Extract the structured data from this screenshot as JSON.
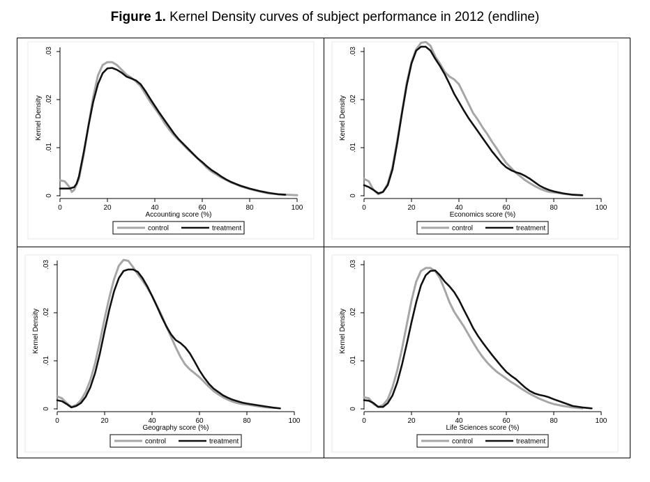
{
  "figure": {
    "title_bold": "Figure 1.",
    "title_rest": " Kernel Density curves of subject performance in 2012 (endline)"
  },
  "colors": {
    "control": "#a6a6a6",
    "treatment": "#111111",
    "frame": "#e8e8e8"
  },
  "chart_data": [
    {
      "type": "line",
      "xlabel": "Accounting score (%)",
      "ylabel": "Kernel Density",
      "xlim": [
        0,
        100
      ],
      "ylim": [
        0,
        0.03
      ],
      "xticks": [
        0,
        20,
        40,
        60,
        80,
        100
      ],
      "xtick_labels": [
        "0",
        "20",
        "40",
        "60",
        "80",
        "100"
      ],
      "yticks": [
        0,
        0.01,
        0.02,
        0.03
      ],
      "ytick_labels": [
        "0",
        ".01",
        ".02",
        ".03"
      ],
      "legend": {
        "position": "bottom",
        "entries": [
          "control",
          "treatment"
        ]
      },
      "series": [
        {
          "name": "control",
          "x": [
            0,
            2,
            4,
            5,
            6,
            8,
            10,
            12,
            14,
            16,
            18,
            20,
            22,
            24,
            26,
            28,
            30,
            32,
            34,
            36,
            38,
            40,
            42,
            44,
            46,
            48,
            50,
            52,
            54,
            56,
            58,
            60,
            62,
            64,
            66,
            68,
            70,
            72,
            74,
            76,
            78,
            80,
            84,
            88,
            92,
            96,
            100
          ],
          "y": [
            0.0032,
            0.003,
            0.0018,
            0.0008,
            0.0012,
            0.0035,
            0.0085,
            0.0145,
            0.0205,
            0.025,
            0.0272,
            0.0278,
            0.0278,
            0.0272,
            0.0262,
            0.0252,
            0.0246,
            0.0238,
            0.0228,
            0.0212,
            0.0196,
            0.0182,
            0.0168,
            0.0152,
            0.0138,
            0.0126,
            0.0116,
            0.0106,
            0.0096,
            0.0087,
            0.0078,
            0.0068,
            0.0058,
            0.005,
            0.0044,
            0.0038,
            0.0033,
            0.0028,
            0.0024,
            0.002,
            0.0017,
            0.0014,
            0.0009,
            0.0005,
            0.0003,
            0.0002,
            0.0001
          ]
        },
        {
          "name": "treatment",
          "x": [
            0,
            2,
            4,
            6,
            7,
            8,
            10,
            12,
            14,
            16,
            18,
            20,
            22,
            24,
            26,
            28,
            30,
            32,
            34,
            36,
            38,
            40,
            42,
            44,
            46,
            48,
            50,
            52,
            54,
            56,
            58,
            60,
            62,
            64,
            66,
            68,
            70,
            72,
            74,
            76,
            78,
            80,
            84,
            88,
            92,
            95
          ],
          "y": [
            0.0015,
            0.0015,
            0.0015,
            0.0018,
            0.0025,
            0.004,
            0.009,
            0.0145,
            0.0195,
            0.0232,
            0.0255,
            0.0265,
            0.0266,
            0.0262,
            0.0256,
            0.0248,
            0.0244,
            0.024,
            0.0232,
            0.0218,
            0.0202,
            0.0187,
            0.0172,
            0.0158,
            0.0144,
            0.013,
            0.0118,
            0.0108,
            0.0098,
            0.0088,
            0.0078,
            0.007,
            0.0061,
            0.0053,
            0.0047,
            0.004,
            0.0034,
            0.0029,
            0.0025,
            0.0021,
            0.0018,
            0.0015,
            0.001,
            0.0006,
            0.0003,
            0.0002
          ]
        }
      ]
    },
    {
      "type": "line",
      "xlabel": "Economics score (%)",
      "ylabel": "Kernel Density",
      "xlim": [
        0,
        100
      ],
      "ylim": [
        0,
        0.03
      ],
      "xticks": [
        0,
        20,
        40,
        60,
        80,
        100
      ],
      "xtick_labels": [
        "0",
        "20",
        "40",
        "60",
        "80",
        "100"
      ],
      "yticks": [
        0,
        0.01,
        0.02,
        0.03
      ],
      "ytick_labels": [
        "0",
        ".01",
        ".02",
        ".03"
      ],
      "legend": {
        "position": "bottom",
        "entries": [
          "control",
          "treatment"
        ]
      },
      "series": [
        {
          "name": "control",
          "x": [
            0,
            2,
            4,
            6,
            8,
            10,
            12,
            14,
            16,
            18,
            20,
            22,
            24,
            26,
            28,
            30,
            32,
            34,
            36,
            38,
            40,
            42,
            44,
            46,
            48,
            50,
            52,
            54,
            56,
            58,
            60,
            62,
            64,
            66,
            68,
            70,
            72,
            74,
            76,
            78,
            80,
            84,
            88,
            92
          ],
          "y": [
            0.0035,
            0.003,
            0.0012,
            0.0003,
            0.0008,
            0.0025,
            0.006,
            0.0115,
            0.0175,
            0.0235,
            0.0278,
            0.0305,
            0.0318,
            0.032,
            0.0312,
            0.029,
            0.0275,
            0.0258,
            0.0248,
            0.0242,
            0.0232,
            0.0212,
            0.0192,
            0.0172,
            0.0158,
            0.0142,
            0.0128,
            0.0112,
            0.0098,
            0.0082,
            0.0068,
            0.0058,
            0.0048,
            0.004,
            0.0032,
            0.0026,
            0.002,
            0.0015,
            0.0011,
            0.0008,
            0.0007,
            0.0004,
            0.0002,
            0.0001
          ]
        },
        {
          "name": "treatment",
          "x": [
            0,
            2,
            4,
            6,
            8,
            10,
            12,
            14,
            16,
            18,
            20,
            22,
            24,
            26,
            28,
            30,
            32,
            34,
            36,
            38,
            40,
            42,
            44,
            46,
            48,
            50,
            52,
            54,
            56,
            58,
            60,
            62,
            64,
            66,
            68,
            70,
            72,
            74,
            76,
            78,
            80,
            84,
            88,
            92
          ],
          "y": [
            0.0022,
            0.0018,
            0.0012,
            0.0005,
            0.0008,
            0.0022,
            0.0055,
            0.011,
            0.0172,
            0.023,
            0.0275,
            0.0302,
            0.031,
            0.031,
            0.0302,
            0.0285,
            0.027,
            0.0253,
            0.0233,
            0.0212,
            0.0195,
            0.0178,
            0.0162,
            0.0148,
            0.0134,
            0.012,
            0.0106,
            0.0092,
            0.008,
            0.0068,
            0.0059,
            0.0053,
            0.0049,
            0.0046,
            0.0041,
            0.0035,
            0.0028,
            0.0021,
            0.0016,
            0.0012,
            0.0009,
            0.0005,
            0.0002,
            0.0001
          ]
        }
      ]
    },
    {
      "type": "line",
      "xlabel": "Geography score (%)",
      "ylabel": "Kernel Density",
      "xlim": [
        0,
        100
      ],
      "ylim": [
        0,
        0.03
      ],
      "xticks": [
        0,
        20,
        40,
        60,
        80,
        100
      ],
      "xtick_labels": [
        "0",
        "20",
        "40",
        "60",
        "80",
        "100"
      ],
      "yticks": [
        0,
        0.01,
        0.02,
        0.03
      ],
      "ytick_labels": [
        "0",
        ".01",
        ".02",
        ".03"
      ],
      "legend": {
        "position": "bottom",
        "entries": [
          "control",
          "treatment"
        ]
      },
      "series": [
        {
          "name": "control",
          "x": [
            0,
            2,
            4,
            6,
            8,
            10,
            12,
            14,
            16,
            18,
            20,
            22,
            24,
            26,
            28,
            30,
            32,
            34,
            36,
            38,
            40,
            42,
            44,
            46,
            48,
            50,
            52,
            54,
            56,
            58,
            60,
            62,
            64,
            66,
            68,
            70,
            72,
            74,
            76,
            78,
            80,
            84,
            88,
            92
          ],
          "y": [
            0.0026,
            0.0022,
            0.0012,
            0.0004,
            0.0008,
            0.0018,
            0.0035,
            0.006,
            0.0095,
            0.014,
            0.0188,
            0.0232,
            0.027,
            0.0298,
            0.031,
            0.0308,
            0.0295,
            0.028,
            0.0267,
            0.0252,
            0.0235,
            0.0215,
            0.0195,
            0.0172,
            0.015,
            0.0128,
            0.0108,
            0.0092,
            0.0082,
            0.0074,
            0.0066,
            0.0056,
            0.0046,
            0.0037,
            0.003,
            0.0024,
            0.0019,
            0.0015,
            0.0012,
            0.001,
            0.0009,
            0.0006,
            0.0003,
            0.0002
          ]
        },
        {
          "name": "treatment",
          "x": [
            0,
            2,
            4,
            6,
            8,
            10,
            12,
            14,
            16,
            18,
            20,
            22,
            24,
            26,
            28,
            30,
            32,
            34,
            36,
            38,
            40,
            42,
            44,
            46,
            48,
            50,
            52,
            54,
            56,
            58,
            60,
            62,
            64,
            66,
            68,
            70,
            72,
            74,
            76,
            78,
            80,
            84,
            88,
            92,
            94
          ],
          "y": [
            0.0018,
            0.0016,
            0.001,
            0.0003,
            0.0006,
            0.0012,
            0.0025,
            0.0045,
            0.0075,
            0.0115,
            0.0162,
            0.0207,
            0.0245,
            0.0272,
            0.0287,
            0.029,
            0.029,
            0.0285,
            0.0272,
            0.0255,
            0.0235,
            0.0214,
            0.0192,
            0.0172,
            0.0155,
            0.0143,
            0.0137,
            0.0128,
            0.0115,
            0.0098,
            0.008,
            0.0065,
            0.0052,
            0.0042,
            0.0035,
            0.0028,
            0.0023,
            0.0019,
            0.0016,
            0.0013,
            0.0011,
            0.0008,
            0.0005,
            0.0002,
            0.0001
          ]
        }
      ]
    },
    {
      "type": "line",
      "xlabel": "Life Sciences score (%)",
      "ylabel": "Kernel Density",
      "xlim": [
        0,
        100
      ],
      "ylim": [
        0,
        0.03
      ],
      "xticks": [
        0,
        20,
        40,
        60,
        80,
        100
      ],
      "xtick_labels": [
        "0",
        "20",
        "40",
        "60",
        "80",
        "100"
      ],
      "yticks": [
        0,
        0.01,
        0.02,
        0.03
      ],
      "ytick_labels": [
        "0",
        ".01",
        ".02",
        ".03"
      ],
      "legend": {
        "position": "bottom",
        "entries": [
          "control",
          "treatment"
        ]
      },
      "series": [
        {
          "name": "control",
          "x": [
            0,
            2,
            4,
            6,
            8,
            10,
            12,
            14,
            16,
            18,
            20,
            22,
            24,
            26,
            28,
            30,
            32,
            34,
            36,
            38,
            40,
            42,
            44,
            46,
            48,
            50,
            52,
            54,
            56,
            58,
            60,
            62,
            64,
            66,
            68,
            70,
            72,
            74,
            76,
            78,
            80,
            84,
            88,
            92
          ],
          "y": [
            0.0024,
            0.0022,
            0.001,
            0.0004,
            0.0008,
            0.002,
            0.0045,
            0.008,
            0.0125,
            0.0175,
            0.0225,
            0.0265,
            0.0287,
            0.0293,
            0.0293,
            0.0287,
            0.0272,
            0.0248,
            0.0222,
            0.0202,
            0.0187,
            0.0172,
            0.0155,
            0.0138,
            0.0122,
            0.0108,
            0.0096,
            0.0086,
            0.0077,
            0.007,
            0.0063,
            0.0056,
            0.005,
            0.0043,
            0.0037,
            0.0031,
            0.0026,
            0.0021,
            0.0017,
            0.0013,
            0.001,
            0.0006,
            0.0003,
            0.0001
          ]
        },
        {
          "name": "treatment",
          "x": [
            0,
            2,
            4,
            6,
            8,
            10,
            12,
            14,
            16,
            18,
            20,
            22,
            24,
            26,
            28,
            30,
            32,
            34,
            36,
            38,
            40,
            42,
            44,
            46,
            48,
            50,
            52,
            54,
            56,
            58,
            60,
            62,
            64,
            66,
            68,
            70,
            72,
            74,
            76,
            78,
            80,
            84,
            88,
            92,
            96
          ],
          "y": [
            0.0018,
            0.0017,
            0.0012,
            0.0004,
            0.0004,
            0.0012,
            0.0028,
            0.0055,
            0.0092,
            0.0135,
            0.018,
            0.0222,
            0.0257,
            0.0278,
            0.0287,
            0.0288,
            0.0278,
            0.0265,
            0.0255,
            0.0243,
            0.0227,
            0.0207,
            0.0188,
            0.0168,
            0.0152,
            0.0138,
            0.0125,
            0.0112,
            0.01,
            0.0088,
            0.0077,
            0.0069,
            0.0062,
            0.0053,
            0.0044,
            0.0037,
            0.0032,
            0.0029,
            0.0027,
            0.0024,
            0.002,
            0.0013,
            0.0006,
            0.0003,
            0.0001
          ]
        }
      ]
    }
  ]
}
